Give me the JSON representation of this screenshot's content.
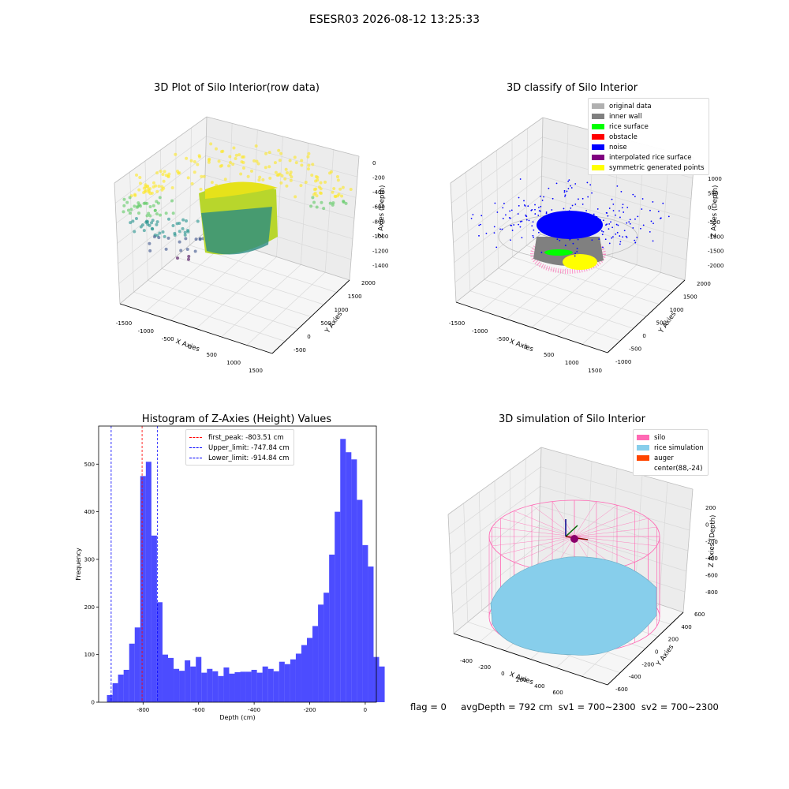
{
  "suptitle": "ESESR03 2026-08-12 13:25:33",
  "panel1": {
    "title": "3D Plot of Silo Interior(row data)",
    "xlabel": "X Axies",
    "ylabel": "Y Axies",
    "zlabel": "Z Axies (Depth)",
    "xticks": [
      "-1500",
      "-1000",
      "-500",
      "0",
      "500",
      "1000",
      "1500"
    ],
    "yticks": [
      "-500",
      "0",
      "500",
      "1000",
      "1500",
      "2000"
    ],
    "zticks": [
      "0",
      "-200",
      "-400",
      "-600",
      "-800",
      "-1000",
      "-1200",
      "-1400"
    ]
  },
  "panel2": {
    "title": "3D classify of Silo Interior",
    "xlabel": "X Axies",
    "ylabel": "Y Axies",
    "zlabel": "Z Axies (Depth)",
    "xticks": [
      "-1500",
      "-1000",
      "-500",
      "0",
      "500",
      "1000",
      "1500"
    ],
    "yticks": [
      "-1000",
      "-500",
      "0",
      "500",
      "1000",
      "1500",
      "2000"
    ],
    "zticks": [
      "1000",
      "500",
      "0",
      "-500",
      "-1000",
      "-1500",
      "-2000"
    ],
    "legend": [
      {
        "label": "original data",
        "color": "#b0b0b0"
      },
      {
        "label": "inner wall",
        "color": "#808080"
      },
      {
        "label": "rice surface",
        "color": "#00ff00"
      },
      {
        "label": "obstacle",
        "color": "#ff0000"
      },
      {
        "label": "noise",
        "color": "#0000ff"
      },
      {
        "label": "interpolated rice surface",
        "color": "#800080"
      },
      {
        "label": "symmetric generated points",
        "color": "#ffff00"
      }
    ]
  },
  "panel3": {
    "title": "Histogram of Z-Axies (Height) Values",
    "legend": [
      {
        "label": "first_peak: -803.51 cm",
        "color": "#ff0000"
      },
      {
        "label": "Upper_limit: -747.84 cm",
        "color": "#0000ff"
      },
      {
        "label": "Lower_limit: -914.84 cm",
        "color": "#0000ff"
      }
    ]
  },
  "panel4": {
    "title": "3D simulation of Silo Interior",
    "xlabel": "X Axies",
    "ylabel": "Y Axies",
    "zlabel": "Z Axies (Depth)",
    "xticks": [
      "-400",
      "-200",
      "0",
      "200",
      "400",
      "600"
    ],
    "yticks": [
      "-600",
      "-400",
      "-200",
      "0",
      "200",
      "400",
      "600"
    ],
    "zticks": [
      "200",
      "0",
      "-200",
      "-400",
      "-600",
      "-800"
    ],
    "legend": [
      {
        "label": "silo",
        "color": "#ff69b4"
      },
      {
        "label": "rice simulation",
        "color": "#87ceeb"
      },
      {
        "label": "auger",
        "color": "#ff4500"
      },
      {
        "label": "center(88,-24)",
        "color": "#ffffff"
      }
    ]
  },
  "footer": "flag = 0     avgDepth = 792 cm  sv1 = 700~2300  sv2 = 700~2300",
  "chart_data": {
    "type": "bar",
    "title": "Histogram of Z-Axies (Height) Values",
    "xlabel": "Depth (cm)",
    "ylabel": "Frequency",
    "xlim": [
      -960,
      40
    ],
    "ylim": [
      0,
      580
    ],
    "xticks": [
      -800,
      -600,
      -400,
      -200,
      0
    ],
    "yticks": [
      0,
      100,
      200,
      300,
      400,
      500
    ],
    "bin_start": -930,
    "bin_width": 20,
    "values": [
      15,
      40,
      58,
      68,
      123,
      157,
      475,
      505,
      350,
      210,
      100,
      93,
      70,
      66,
      88,
      75,
      95,
      62,
      70,
      65,
      55,
      73,
      60,
      63,
      64,
      64,
      68,
      62,
      75,
      70,
      65,
      85,
      80,
      90,
      102,
      120,
      135,
      160,
      205,
      230,
      310,
      400,
      553,
      525,
      510,
      425,
      330,
      285,
      95,
      75
    ],
    "color": "#0000ff",
    "lines": [
      {
        "name": "first_peak: -803.51 cm",
        "x": -803.51,
        "color": "#ff0000"
      },
      {
        "name": "Upper_limit: -747.84 cm",
        "x": -747.84,
        "color": "#0000ff"
      },
      {
        "name": "Lower_limit: -914.84 cm",
        "x": -914.84,
        "color": "#0000ff"
      }
    ]
  }
}
